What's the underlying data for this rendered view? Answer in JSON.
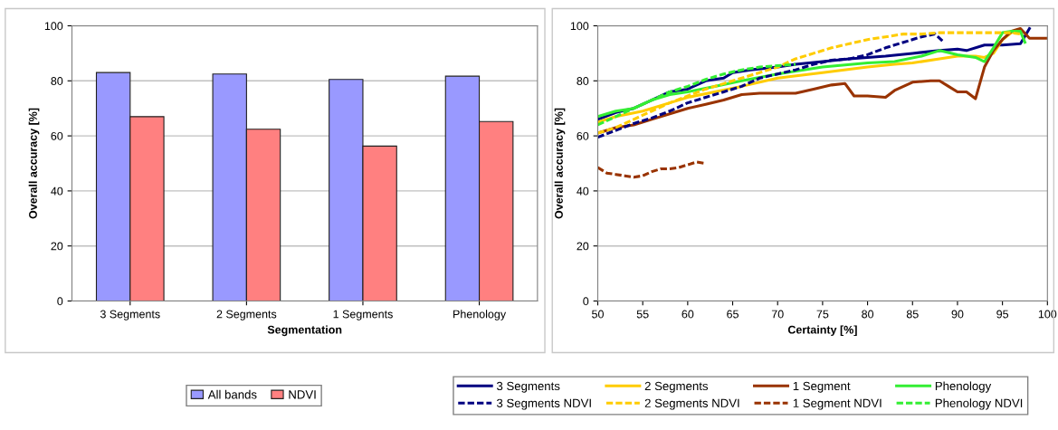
{
  "chart_data": [
    {
      "type": "bar",
      "xlabel": "Segmentation",
      "ylabel": "Overall accuracy [%]",
      "categories": [
        "3 Segments",
        "2 Segments",
        "1 Segments",
        "Phenology"
      ],
      "ylim": [
        0,
        100
      ],
      "yticks": [
        0,
        20,
        40,
        60,
        80,
        100
      ],
      "grid": "y",
      "legend": "bottom",
      "series": [
        {
          "name": "All bands",
          "color": "#9999ff",
          "values": [
            83.0,
            82.5,
            80.5,
            81.7
          ]
        },
        {
          "name": "NDVI",
          "color": "#ff8080",
          "values": [
            67.0,
            62.4,
            56.3,
            65.2
          ]
        }
      ]
    },
    {
      "type": "line",
      "xlabel": "Certainty [%]",
      "ylabel": "Overall accuracy [%]",
      "xlim": [
        50,
        100
      ],
      "xticks": [
        50,
        55,
        60,
        65,
        70,
        75,
        80,
        85,
        90,
        95,
        100
      ],
      "ylim": [
        0,
        100
      ],
      "yticks": [
        0,
        20,
        40,
        60,
        80,
        100
      ],
      "grid": "y",
      "legend": "bottom",
      "marker": "none",
      "series": [
        {
          "name": "3 Segments",
          "color": "#000080",
          "line_style": "solid",
          "x": [
            50,
            52,
            54,
            56,
            58,
            60,
            62,
            64,
            65,
            67,
            70,
            72,
            75,
            78,
            80,
            82,
            85,
            88,
            90,
            91,
            93,
            95,
            97,
            98
          ],
          "values": [
            66,
            68.5,
            70,
            73,
            76,
            77,
            80,
            81,
            83,
            84,
            85,
            86,
            87,
            88,
            88.5,
            89,
            90,
            91,
            91.5,
            91,
            93,
            93,
            93.5,
            99
          ]
        },
        {
          "name": "2 Segments",
          "color": "#ffcc00",
          "line_style": "solid",
          "x": [
            50,
            52,
            55,
            58,
            60,
            63,
            66,
            70,
            75,
            80,
            83,
            85,
            88,
            90,
            92,
            93,
            94,
            95,
            96,
            97
          ],
          "values": [
            65,
            67,
            69,
            72,
            74,
            76,
            78,
            81,
            83,
            85,
            86,
            86.5,
            88,
            89,
            89,
            88.5,
            90,
            95,
            97.5,
            98
          ]
        },
        {
          "name": "1 Segment",
          "color": "#993300",
          "line_style": "solid",
          "x": [
            50,
            52,
            54,
            56,
            58,
            60,
            62,
            64,
            66,
            68,
            70,
            72,
            74,
            76,
            77.5,
            78.5,
            80,
            82,
            83,
            85,
            87,
            88,
            89,
            90,
            91,
            92,
            93,
            94,
            95,
            96,
            97,
            98,
            99,
            100
          ],
          "values": [
            61,
            63,
            64,
            66,
            68,
            70,
            71.5,
            73,
            75,
            75.5,
            75.5,
            75.5,
            77,
            78.5,
            79,
            74.5,
            74.5,
            74,
            76.5,
            79.5,
            80,
            80,
            78,
            76,
            76,
            73.5,
            85,
            91,
            95,
            98,
            99,
            95.5,
            95.5,
            95.5
          ]
        },
        {
          "name": "Phenology",
          "color": "#33ee33",
          "line_style": "solid",
          "x": [
            50,
            52,
            54,
            56,
            58,
            60,
            63,
            66,
            70,
            75,
            80,
            83,
            86,
            88,
            90,
            91,
            92,
            93,
            94,
            95,
            96,
            97,
            97.5
          ],
          "values": [
            67,
            69,
            70,
            73,
            75,
            76,
            78,
            80,
            82.5,
            85,
            86.5,
            87,
            89,
            91,
            89.5,
            89,
            88.5,
            87,
            92,
            97.5,
            98,
            98,
            94
          ]
        },
        {
          "name": "3 Segments NDVI",
          "color": "#000080",
          "line_style": "dashed",
          "x": [
            50,
            52,
            54,
            56,
            58,
            60,
            62,
            64,
            66,
            68,
            70,
            72,
            74,
            76,
            78,
            80,
            82,
            84,
            86,
            87.5,
            88.5
          ],
          "values": [
            59.5,
            62,
            64.5,
            66.5,
            69,
            72,
            74,
            76,
            78,
            81,
            82.5,
            84,
            86,
            87.5,
            88,
            89.5,
            92,
            94,
            96,
            97,
            94
          ]
        },
        {
          "name": "2 Segments NDVI",
          "color": "#ffcc00",
          "line_style": "dashed",
          "x": [
            50,
            52,
            54,
            56,
            58,
            60,
            62,
            64,
            66,
            68,
            70,
            72,
            74,
            76,
            78,
            80,
            82,
            84,
            86,
            88,
            90,
            92,
            94,
            96,
            97
          ],
          "values": [
            61,
            63,
            66,
            69,
            72,
            74.5,
            77,
            79,
            81,
            83,
            85,
            88,
            90,
            92,
            93.5,
            95,
            96,
            97,
            97,
            97.5,
            97.5,
            97.5,
            97.5,
            97.5,
            97
          ]
        },
        {
          "name": "1 Segment NDVI",
          "color": "#993300",
          "line_style": "dashed",
          "x": [
            50,
            51,
            52,
            53,
            54,
            55,
            56,
            57,
            58,
            59,
            60,
            61,
            62
          ],
          "values": [
            48.5,
            46.5,
            46,
            45.5,
            45,
            45.5,
            47,
            48,
            48,
            48.5,
            49.5,
            50.5,
            50
          ]
        },
        {
          "name": "Phenology NDVI",
          "color": "#33ee33",
          "line_style": "dashed",
          "x": [
            50,
            52,
            54,
            56,
            58,
            60,
            62,
            64,
            66,
            68,
            70,
            72
          ],
          "values": [
            64,
            67,
            70,
            73,
            76,
            78,
            80.5,
            82.5,
            84,
            85,
            85.5,
            86
          ]
        }
      ]
    }
  ]
}
